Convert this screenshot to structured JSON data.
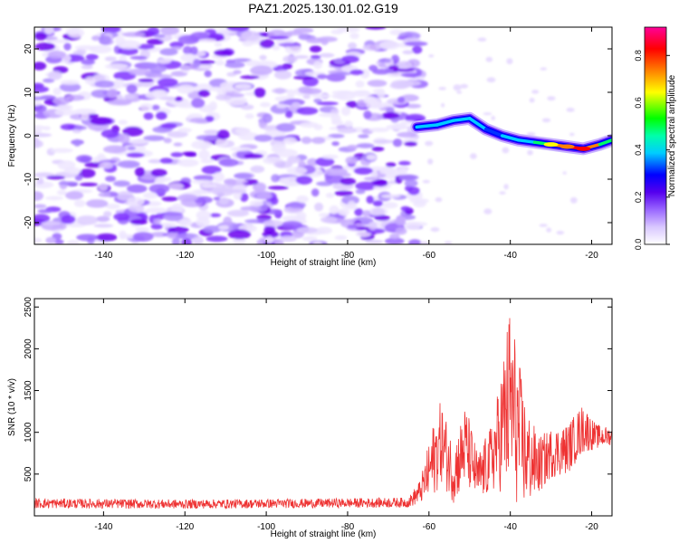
{
  "figure": {
    "title": "PAZ1.2025.130.01.02.G19"
  },
  "chart_data": [
    {
      "type": "heatmap",
      "xlabel": "Height of straight line (km)",
      "ylabel": "Frequency (Hz)",
      "xlim": [
        -157,
        -15
      ],
      "ylim": [
        -25,
        25
      ],
      "x_ticks": [
        -140,
        -120,
        -100,
        -80,
        -60,
        -40,
        -20
      ],
      "y_ticks": [
        -20,
        -10,
        0,
        10,
        20
      ],
      "colorbar": {
        "label": "Normalized spectral amplitude",
        "range": [
          0,
          0.92
        ],
        "ticks": [
          0.0,
          0.2,
          0.4,
          0.6,
          0.8
        ],
        "tick_labels": [
          "0.0",
          "0.2",
          "0.4",
          "0.6",
          "0.8"
        ],
        "colormap": [
          "#ffffff",
          "#9966ff",
          "#6600ff",
          "#0000ff",
          "#00ffff",
          "#00ff00",
          "#ffff00",
          "#ff8000",
          "#ff0000",
          "#ff0099"
        ]
      },
      "noise_region": {
        "x": [
          -157,
          -62
        ],
        "y": [
          -25,
          25
        ],
        "amplitude": [
          0.0,
          0.15
        ]
      },
      "signal_track": {
        "points": [
          {
            "x": -63,
            "y": 2,
            "amp": 0.28
          },
          {
            "x": -58,
            "y": 2.5,
            "amp": 0.3
          },
          {
            "x": -54,
            "y": 3.5,
            "amp": 0.28
          },
          {
            "x": -50,
            "y": 4,
            "amp": 0.3
          },
          {
            "x": -46,
            "y": 1.5,
            "amp": 0.25
          },
          {
            "x": -42,
            "y": 0,
            "amp": 0.24
          },
          {
            "x": -38,
            "y": -1,
            "amp": 0.3
          },
          {
            "x": -34,
            "y": -1.5,
            "amp": 0.3
          },
          {
            "x": -30,
            "y": -2,
            "amp": 0.55
          },
          {
            "x": -26,
            "y": -2.5,
            "amp": 0.8
          },
          {
            "x": -22,
            "y": -3,
            "amp": 0.88
          },
          {
            "x": -18,
            "y": -2,
            "amp": 0.45
          },
          {
            "x": -15,
            "y": -1,
            "amp": 0.35
          }
        ]
      },
      "grid": false
    },
    {
      "type": "line",
      "xlabel": "Height of straight line (km)",
      "ylabel": "SNR (10 * v/v)",
      "xlim": [
        -157,
        -15
      ],
      "ylim": [
        0,
        2600
      ],
      "x_ticks": [
        -140,
        -120,
        -100,
        -80,
        -60,
        -40,
        -20
      ],
      "y_ticks": [
        500,
        1000,
        1500,
        2000,
        2500
      ],
      "series": [
        {
          "color": "#ee3333",
          "envelope": [
            {
              "x": -157,
              "base": 150,
              "spread": 60
            },
            {
              "x": -120,
              "base": 140,
              "spread": 55
            },
            {
              "x": -90,
              "base": 150,
              "spread": 55
            },
            {
              "x": -65,
              "base": 160,
              "spread": 60
            },
            {
              "x": -62,
              "base": 300,
              "spread": 150
            },
            {
              "x": -59,
              "base": 650,
              "spread": 450
            },
            {
              "x": -57,
              "base": 900,
              "spread": 500
            },
            {
              "x": -54,
              "base": 500,
              "spread": 350
            },
            {
              "x": -51,
              "base": 850,
              "spread": 500
            },
            {
              "x": -48,
              "base": 450,
              "spread": 300
            },
            {
              "x": -45,
              "base": 650,
              "spread": 400
            },
            {
              "x": -43,
              "base": 900,
              "spread": 600
            },
            {
              "x": -40,
              "base": 1400,
              "spread": 1200
            },
            {
              "x": -38,
              "base": 1000,
              "spread": 900
            },
            {
              "x": -36,
              "base": 700,
              "spread": 600
            },
            {
              "x": -33,
              "base": 600,
              "spread": 350
            },
            {
              "x": -30,
              "base": 750,
              "spread": 300
            },
            {
              "x": -26,
              "base": 800,
              "spread": 300
            },
            {
              "x": -22,
              "base": 1050,
              "spread": 300
            },
            {
              "x": -19,
              "base": 950,
              "spread": 150
            },
            {
              "x": -15,
              "base": 950,
              "spread": 100
            }
          ]
        }
      ],
      "grid": false
    }
  ]
}
